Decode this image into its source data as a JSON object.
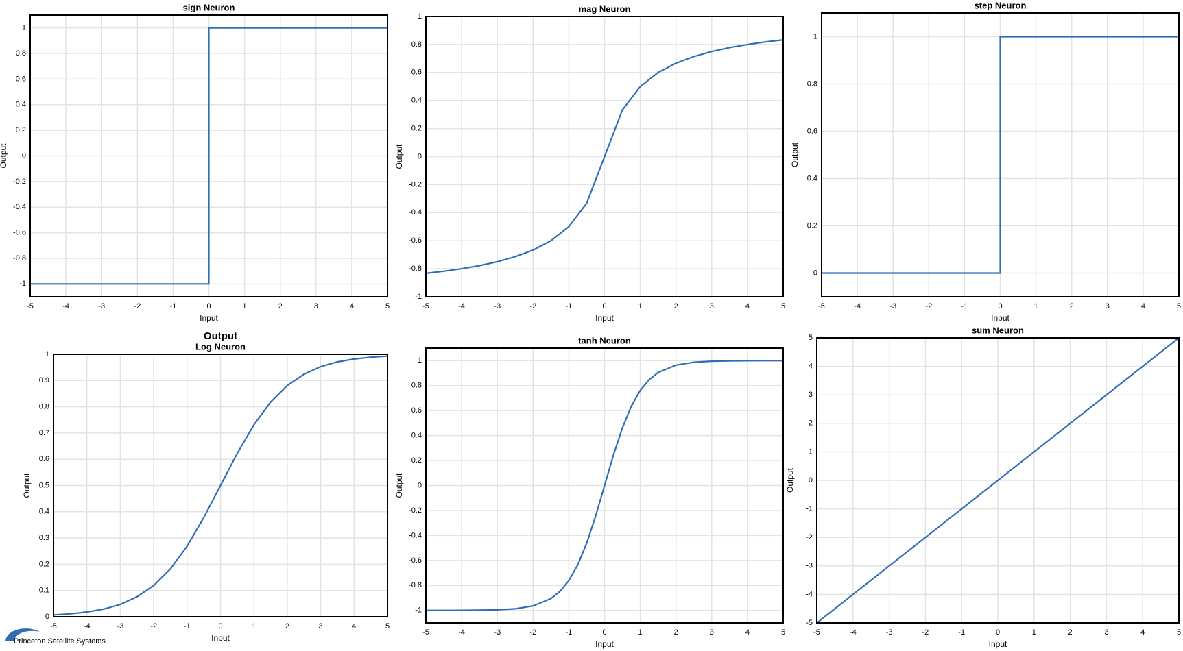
{
  "logo_text": "Princeton Satellite Systems",
  "chart_data": [
    {
      "type": "line",
      "title": "sign Neuron",
      "xlabel": "Input",
      "ylabel": "Output",
      "color": "#2f6eb5",
      "grid": true,
      "x": [
        -5,
        0,
        0,
        5
      ],
      "values": [
        -1,
        -1,
        1,
        1
      ],
      "xlim": [
        -5,
        5
      ],
      "xticks": [
        -5,
        -4,
        -3,
        -2,
        -1,
        0,
        1,
        2,
        3,
        4,
        5
      ],
      "ylim": [
        -1.1,
        1.1
      ],
      "yticks": [
        -1,
        -0.8,
        -0.6,
        -0.4,
        -0.2,
        0,
        0.2,
        0.4,
        0.6,
        0.8,
        1
      ]
    },
    {
      "type": "line",
      "title": "mag Neuron",
      "xlabel": "Input",
      "ylabel": "Output",
      "color": "#2f6eb5",
      "grid": true,
      "x": [
        -5,
        -4.5,
        -4,
        -3.5,
        -3,
        -2.5,
        -2,
        -1.5,
        -1,
        -0.5,
        0,
        0.5,
        1,
        1.5,
        2,
        2.5,
        3,
        3.5,
        4,
        4.5,
        5
      ],
      "values": [
        -0.833,
        -0.818,
        -0.8,
        -0.778,
        -0.75,
        -0.714,
        -0.667,
        -0.6,
        -0.5,
        -0.333,
        0,
        0.333,
        0.5,
        0.6,
        0.667,
        0.714,
        0.75,
        0.778,
        0.8,
        0.818,
        0.833
      ],
      "xlim": [
        -5,
        5
      ],
      "xticks": [
        -5,
        -4,
        -3,
        -2,
        -1,
        0,
        1,
        2,
        3,
        4,
        5
      ],
      "ylim": [
        -1,
        1
      ],
      "yticks": [
        -1,
        -0.8,
        -0.6,
        -0.4,
        -0.2,
        0,
        0.2,
        0.4,
        0.6,
        0.8,
        1
      ]
    },
    {
      "type": "line",
      "title": "step Neuron",
      "xlabel": "Input",
      "ylabel": "Output",
      "color": "#2f6eb5",
      "grid": true,
      "x": [
        -5,
        0,
        0,
        5
      ],
      "values": [
        0,
        0,
        1,
        1
      ],
      "xlim": [
        -5,
        5
      ],
      "xticks": [
        -5,
        -4,
        -3,
        -2,
        -1,
        0,
        1,
        2,
        3,
        4,
        5
      ],
      "ylim": [
        -0.1,
        1.1
      ],
      "yticks": [
        0,
        0.2,
        0.4,
        0.6,
        0.8,
        1
      ]
    },
    {
      "type": "line",
      "suptitle": "Output",
      "title": "Log Neuron",
      "xlabel": "Input",
      "ylabel": "Output",
      "color": "#2f6eb5",
      "grid": true,
      "x": [
        -5,
        -4.5,
        -4,
        -3.5,
        -3,
        -2.5,
        -2,
        -1.5,
        -1,
        -0.5,
        0,
        0.5,
        1,
        1.5,
        2,
        2.5,
        3,
        3.5,
        4,
        4.5,
        5
      ],
      "values": [
        0.007,
        0.011,
        0.018,
        0.029,
        0.047,
        0.076,
        0.119,
        0.182,
        0.269,
        0.378,
        0.5,
        0.622,
        0.731,
        0.818,
        0.881,
        0.924,
        0.953,
        0.971,
        0.982,
        0.989,
        0.993
      ],
      "xlim": [
        -5,
        5
      ],
      "xticks": [
        -5,
        -4,
        -3,
        -2,
        -1,
        0,
        1,
        2,
        3,
        4,
        5
      ],
      "ylim": [
        0,
        1
      ],
      "yticks": [
        0,
        0.1,
        0.2,
        0.3,
        0.4,
        0.5,
        0.6,
        0.7,
        0.8,
        0.9,
        1
      ]
    },
    {
      "type": "line",
      "title": "tanh Neuron",
      "xlabel": "Input",
      "ylabel": "Output",
      "color": "#2f6eb5",
      "grid": true,
      "x": [
        -5,
        -4.5,
        -4,
        -3.5,
        -3,
        -2.5,
        -2,
        -1.5,
        -1.25,
        -1,
        -0.75,
        -0.5,
        -0.25,
        0,
        0.25,
        0.5,
        0.75,
        1,
        1.25,
        1.5,
        2,
        2.5,
        3,
        3.5,
        4,
        4.5,
        5
      ],
      "values": [
        -1,
        -1,
        -0.999,
        -0.998,
        -0.995,
        -0.987,
        -0.964,
        -0.905,
        -0.848,
        -0.762,
        -0.635,
        -0.462,
        -0.245,
        0,
        0.245,
        0.462,
        0.635,
        0.762,
        0.848,
        0.905,
        0.964,
        0.987,
        0.995,
        0.998,
        0.999,
        1,
        1
      ],
      "xlim": [
        -5,
        5
      ],
      "xticks": [
        -5,
        -4,
        -3,
        -2,
        -1,
        0,
        1,
        2,
        3,
        4,
        5
      ],
      "ylim": [
        -1.1,
        1.1
      ],
      "yticks": [
        -1,
        -0.8,
        -0.6,
        -0.4,
        -0.2,
        0,
        0.2,
        0.4,
        0.6,
        0.8,
        1
      ]
    },
    {
      "type": "line",
      "title": "sum Neuron",
      "xlabel": "Input",
      "ylabel": "Output",
      "color": "#2f6eb5",
      "grid": true,
      "x": [
        -5,
        5
      ],
      "values": [
        -5,
        5
      ],
      "xlim": [
        -5,
        5
      ],
      "xticks": [
        -5,
        -4,
        -3,
        -2,
        -1,
        0,
        1,
        2,
        3,
        4,
        5
      ],
      "ylim": [
        -5,
        5
      ],
      "yticks": [
        -5,
        -4,
        -3,
        -2,
        -1,
        0,
        1,
        2,
        3,
        4,
        5
      ]
    }
  ]
}
